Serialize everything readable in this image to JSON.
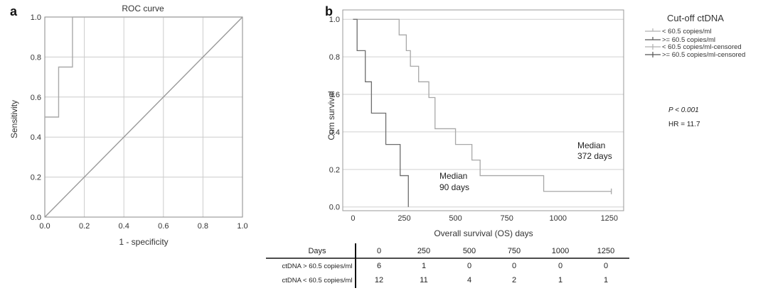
{
  "panels": {
    "a": {
      "label": "a"
    },
    "b": {
      "label": "b"
    }
  },
  "chart_data": [
    {
      "type": "line",
      "title": "ROC curve",
      "xlabel": "1 - specificity",
      "ylabel": "Sensitivity",
      "xlim": [
        0,
        1
      ],
      "ylim": [
        0,
        1
      ],
      "xticks": [
        "0.0",
        "0.2",
        "0.4",
        "0.6",
        "0.8",
        "1.0"
      ],
      "yticks": [
        "0.0",
        "0.2",
        "0.4",
        "0.6",
        "0.8",
        "1.0"
      ],
      "grid": true,
      "series": [
        {
          "x": [
            0,
            0,
            0.07,
            0.07,
            0.14,
            0.14,
            1.0
          ],
          "y": [
            0,
            0.5,
            0.5,
            0.75,
            0.75,
            1.0,
            1.0
          ]
        },
        {
          "x": [
            0,
            1
          ],
          "y": [
            0,
            1
          ]
        }
      ]
    },
    {
      "type": "line",
      "xlabel": "Overall survival (OS) days",
      "ylabel": "Cum survival",
      "xlim": [
        -50,
        1320
      ],
      "ylim": [
        -0.02,
        1.05
      ],
      "xticks": [
        "0",
        "250",
        "500",
        "750",
        "1000",
        "1250"
      ],
      "yticks": [
        "0.0",
        "0.2",
        "0.4",
        "0.6",
        "0.8",
        "1.0"
      ],
      "grid": "horizontal",
      "legend": {
        "title": "Cut-off ctDNA",
        "entries": [
          "< 60.5 copies/ml",
          ">= 60.5 copies/ml",
          "< 60.5 copies/ml-censored",
          ">= 60.5 copies/ml-censored"
        ],
        "position": "top-right"
      },
      "series": [
        {
          "name": "< 60.5 copies/ml",
          "x": [
            0,
            225,
            225,
            260,
            260,
            280,
            280,
            320,
            320,
            370,
            370,
            400,
            400,
            500,
            500,
            580,
            580,
            620,
            620,
            930,
            930,
            1260
          ],
          "y": [
            1.0,
            1.0,
            0.917,
            0.917,
            0.833,
            0.833,
            0.75,
            0.75,
            0.667,
            0.667,
            0.583,
            0.583,
            0.417,
            0.417,
            0.333,
            0.333,
            0.25,
            0.25,
            0.167,
            0.167,
            0.083,
            0.083
          ]
        },
        {
          "name": ">= 60.5 copies/ml",
          "x": [
            0,
            20,
            20,
            60,
            60,
            90,
            90,
            160,
            160,
            230,
            230,
            270,
            270
          ],
          "y": [
            1.0,
            1.0,
            0.833,
            0.833,
            0.667,
            0.667,
            0.5,
            0.5,
            0.333,
            0.333,
            0.167,
            0.167,
            0.0
          ]
        }
      ],
      "annotations": [
        {
          "lines": [
            "Median",
            "372 days"
          ]
        },
        {
          "lines": [
            "Median",
            "90 days"
          ]
        },
        {
          "text": "P < 0.001"
        },
        {
          "text": "HR = 11.7"
        }
      ]
    },
    {
      "type": "table",
      "columns": [
        "Days",
        "0",
        "250",
        "500",
        "750",
        "1000",
        "1250"
      ],
      "rows": [
        {
          "label": "ctDNA > 60.5 copies/ml",
          "values": [
            "6",
            "1",
            "0",
            "0",
            "0",
            "0"
          ]
        },
        {
          "label": "ctDNA < 60.5 copies/ml",
          "values": [
            "12",
            "11",
            "4",
            "2",
            "1",
            "1"
          ]
        }
      ]
    }
  ]
}
